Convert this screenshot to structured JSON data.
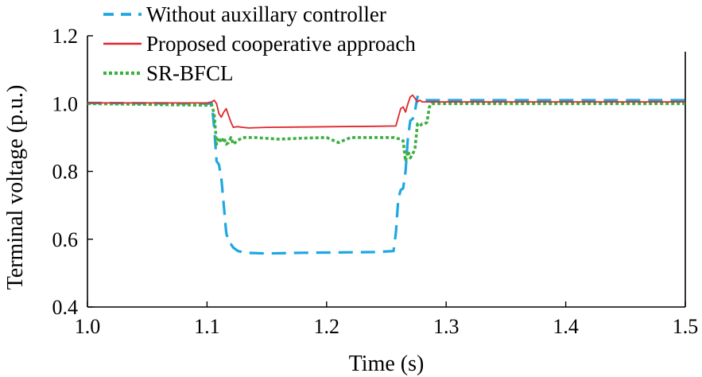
{
  "chart_data": {
    "type": "line",
    "title": "",
    "xlabel": "Time (s)",
    "ylabel": "Terminal voltage (p.u.)",
    "xlim": [
      1.0,
      1.5
    ],
    "ylim": [
      0.4,
      1.2
    ],
    "xticks": [
      "1.0",
      "1.1",
      "1.2",
      "1.3",
      "1.4",
      "1.5"
    ],
    "yticks": [
      "0.4",
      "0.6",
      "0.8",
      "1.0",
      "1.2"
    ],
    "grid": false,
    "legend_position": "top-left",
    "series": [
      {
        "name": "Without auxillary controller",
        "color": "#1ea7e1",
        "style": "dashed",
        "x": [
          1.0,
          1.104,
          1.106,
          1.108,
          1.11,
          1.112,
          1.114,
          1.116,
          1.118,
          1.12,
          1.122,
          1.126,
          1.132,
          1.15,
          1.18,
          1.21,
          1.24,
          1.256,
          1.258,
          1.26,
          1.262,
          1.264,
          1.266,
          1.268,
          1.27,
          1.272,
          1.274,
          1.276,
          1.28,
          1.3,
          1.4,
          1.5
        ],
        "y": [
          1.002,
          1.0,
          0.93,
          0.83,
          0.82,
          0.78,
          0.7,
          0.62,
          0.59,
          0.585,
          0.575,
          0.565,
          0.56,
          0.558,
          0.56,
          0.561,
          0.562,
          0.565,
          0.62,
          0.72,
          0.745,
          0.75,
          0.8,
          0.9,
          0.95,
          0.955,
          0.98,
          1.02,
          1.01,
          1.01,
          1.01,
          1.01
        ]
      },
      {
        "name": "Proposed cooperative approach",
        "color": "#e0262b",
        "style": "solid",
        "x": [
          1.0,
          1.1,
          1.104,
          1.106,
          1.108,
          1.11,
          1.112,
          1.114,
          1.116,
          1.118,
          1.12,
          1.122,
          1.125,
          1.13,
          1.135,
          1.15,
          1.18,
          1.21,
          1.24,
          1.258,
          1.26,
          1.262,
          1.264,
          1.266,
          1.268,
          1.27,
          1.272,
          1.274,
          1.276,
          1.278,
          1.28,
          1.285,
          1.3,
          1.4,
          1.5
        ],
        "y": [
          1.002,
          1.002,
          1.005,
          1.01,
          1.0,
          0.97,
          0.96,
          0.975,
          0.985,
          0.965,
          0.945,
          0.93,
          0.932,
          0.93,
          0.928,
          0.93,
          0.931,
          0.932,
          0.933,
          0.934,
          0.96,
          0.985,
          0.99,
          0.975,
          1.0,
          1.02,
          1.025,
          1.015,
          1.005,
          1.01,
          1.005,
          1.005,
          1.005,
          1.005,
          1.005
        ]
      },
      {
        "name": "SR-BFCL",
        "color": "#3cb043",
        "style": "dotted",
        "x": [
          1.0,
          1.104,
          1.106,
          1.108,
          1.11,
          1.112,
          1.114,
          1.116,
          1.118,
          1.12,
          1.122,
          1.125,
          1.13,
          1.14,
          1.16,
          1.18,
          1.2,
          1.21,
          1.22,
          1.24,
          1.256,
          1.262,
          1.264,
          1.266,
          1.268,
          1.27,
          1.272,
          1.274,
          1.276,
          1.278,
          1.28,
          1.282,
          1.284,
          1.286,
          1.288,
          1.29,
          1.3,
          1.4,
          1.5
        ],
        "y": [
          1.0,
          0.995,
          0.97,
          0.88,
          0.9,
          0.885,
          0.9,
          0.88,
          0.885,
          0.9,
          0.88,
          0.89,
          0.9,
          0.9,
          0.895,
          0.898,
          0.9,
          0.885,
          0.9,
          0.9,
          0.9,
          0.895,
          0.89,
          0.83,
          0.86,
          0.84,
          0.85,
          0.87,
          0.94,
          0.935,
          0.94,
          0.94,
          0.945,
          0.99,
          1.0,
          1.0,
          1.0,
          1.0,
          1.0
        ]
      }
    ]
  }
}
